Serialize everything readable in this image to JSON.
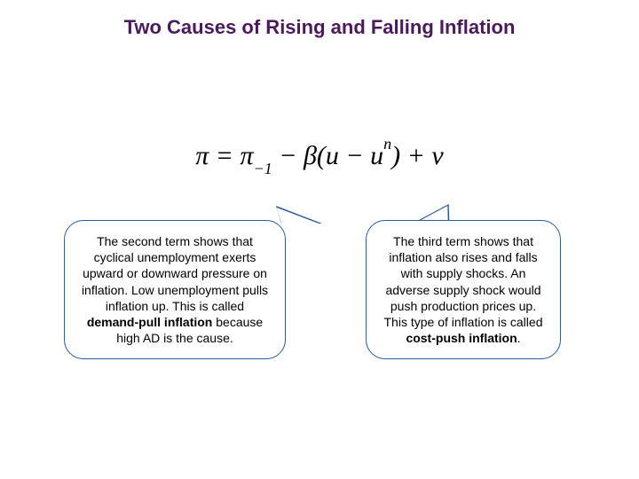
{
  "title": "Two Causes of Rising and Falling Inflation",
  "equation": {
    "pi": "π",
    "eq": " = ",
    "pi2": "π",
    "sub_minus1": "−1",
    "minus": " − ",
    "beta": "β",
    "lparen": "(",
    "u": "u",
    "minus2": " − ",
    "u2": "u",
    "sup_n": "n",
    "rparen": ")",
    "plus": " + ",
    "v": "v"
  },
  "bubble_left": {
    "p1": "The second term shows that cyclical unemployment exerts upward or downward pressure on inflation.  Low unemployment pulls inflation up.  This is called ",
    "b1": "demand-pull inflation",
    "p2": " because high AD is the cause."
  },
  "bubble_right": {
    "p1": "The third term shows that inflation also rises and falls with supply shocks.  An adverse supply shock would push production prices up.  This type of inflation is called ",
    "b1": "cost-push inflation",
    "p2": "."
  },
  "colors": {
    "title": "#4a1a5c",
    "bubble_border": "#2a5aa0",
    "text": "#000000",
    "background": "#ffffff"
  }
}
